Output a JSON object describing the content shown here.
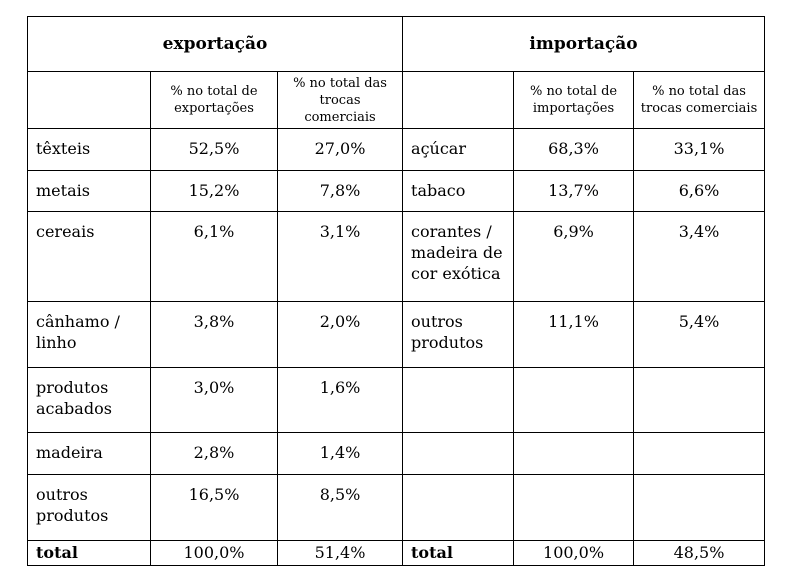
{
  "headers": {
    "exportacao": "exportação",
    "importacao": "importação",
    "exp_pct_total": "% no total de exportações",
    "exp_pct_trocas": "% no total das trocas comerciais",
    "imp_pct_total": "% no total de importações",
    "imp_pct_trocas": "% no total das trocas comerciais"
  },
  "rows": [
    {
      "exp_label": "têxteis",
      "exp_total": "52,5%",
      "exp_trocas": "27,0%",
      "imp_label": "açúcar",
      "imp_total": "68,3%",
      "imp_trocas": "33,1%"
    },
    {
      "exp_label": "metais",
      "exp_total": "15,2%",
      "exp_trocas": "7,8%",
      "imp_label": "tabaco",
      "imp_total": "13,7%",
      "imp_trocas": "6,6%"
    },
    {
      "exp_label": "cereais",
      "exp_total": "6,1%",
      "exp_trocas": "3,1%",
      "imp_label": "corantes / madeira de cor exótica",
      "imp_total": "6,9%",
      "imp_trocas": "3,4%"
    },
    {
      "exp_label": "cânhamo / linho",
      "exp_total": "3,8%",
      "exp_trocas": "2,0%",
      "imp_label": "outros produtos",
      "imp_total": "11,1%",
      "imp_trocas": "5,4%"
    },
    {
      "exp_label": "produtos acabados",
      "exp_total": "3,0%",
      "exp_trocas": "1,6%",
      "imp_label": "",
      "imp_total": "",
      "imp_trocas": ""
    },
    {
      "exp_label": "madeira",
      "exp_total": "2,8%",
      "exp_trocas": "1,4%",
      "imp_label": "",
      "imp_total": "",
      "imp_trocas": ""
    },
    {
      "exp_label": "outros produtos",
      "exp_total": "16,5%",
      "exp_trocas": "8,5%",
      "imp_label": "",
      "imp_total": "",
      "imp_trocas": ""
    }
  ],
  "total": {
    "exp_label": "total",
    "exp_total": "100,0%",
    "exp_trocas": "51,4%",
    "imp_label": "total",
    "imp_total": "100,0%",
    "imp_trocas": "48,5%"
  }
}
